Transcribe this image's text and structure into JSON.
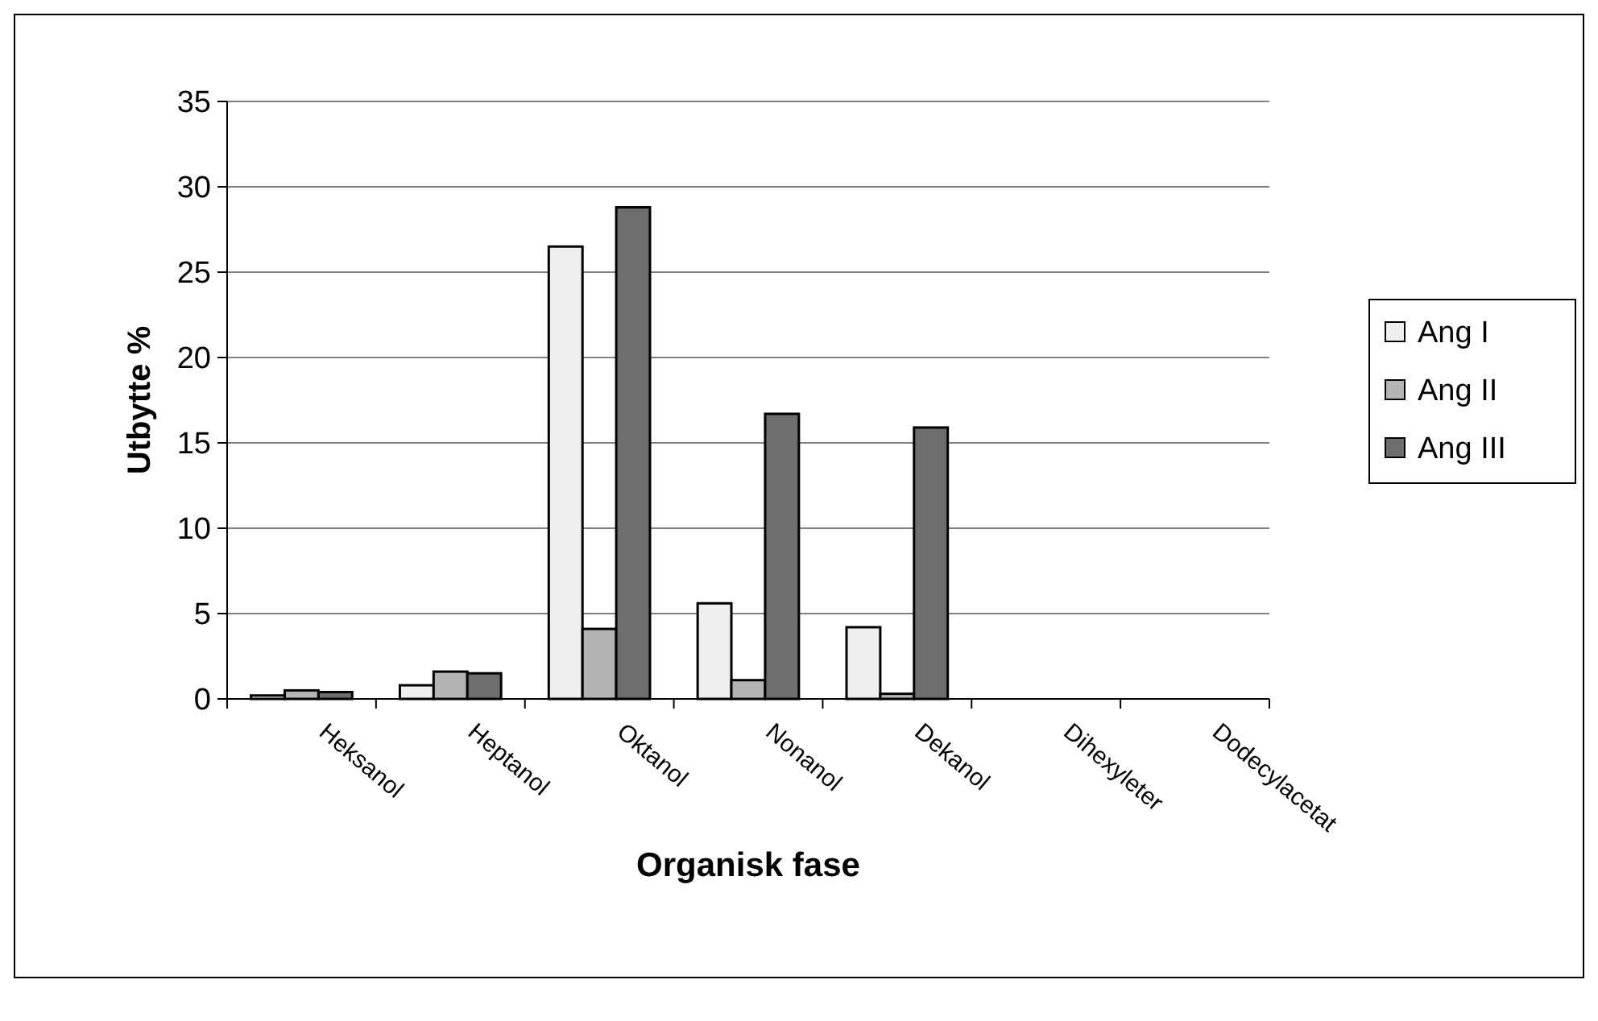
{
  "chart_data": {
    "type": "bar",
    "xlabel": "Organisk fase",
    "ylabel": "Utbytte %",
    "categories": [
      "Heksanol",
      "Heptanol",
      "Oktanol",
      "Nonanol",
      "Dekanol",
      "Dihexyleter",
      "Dodecylacetat"
    ],
    "series": [
      {
        "name": "Ang I",
        "color": "#eeeeee",
        "values": [
          0.2,
          0.8,
          26.5,
          5.6,
          4.2,
          null,
          null
        ]
      },
      {
        "name": "Ang II",
        "color": "#b4b4b4",
        "values": [
          0.5,
          1.6,
          4.1,
          1.1,
          0.3,
          null,
          null
        ]
      },
      {
        "name": "Ang III",
        "color": "#6e6e6e",
        "values": [
          0.4,
          1.5,
          28.8,
          16.7,
          15.9,
          null,
          null
        ]
      }
    ],
    "ylim": [
      0,
      35
    ],
    "yticks": [
      0,
      5,
      10,
      15,
      20,
      25,
      30,
      35
    ],
    "grid": "y",
    "legend": "right"
  }
}
